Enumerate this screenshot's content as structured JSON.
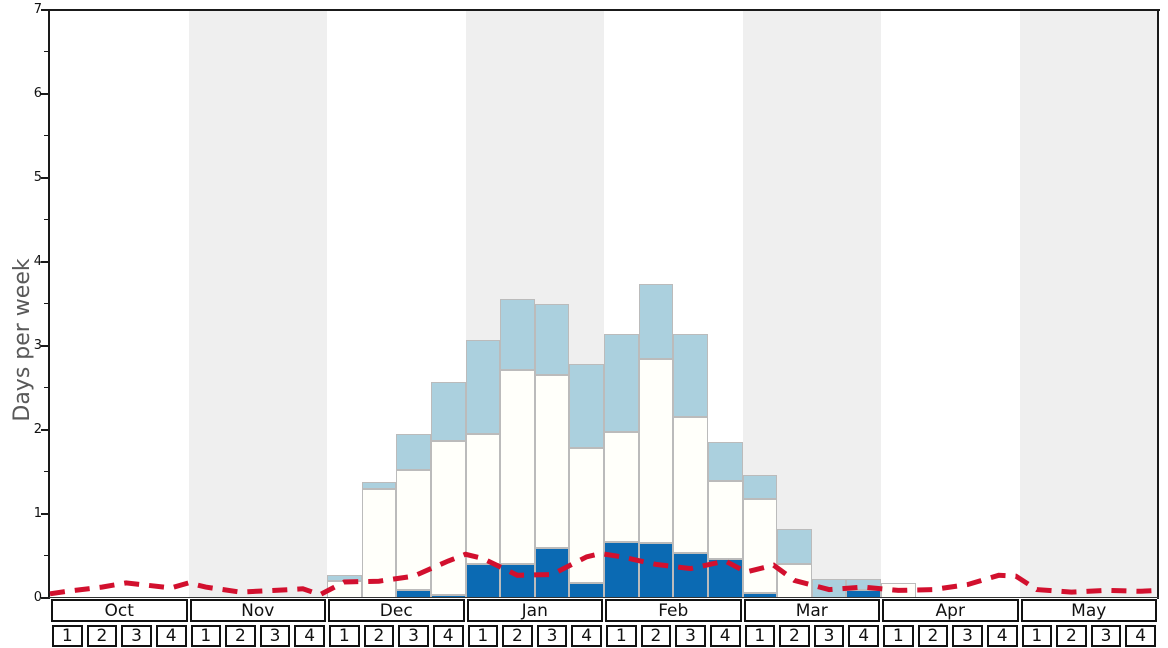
{
  "chart_data": {
    "type": "bar",
    "title": "",
    "ylabel": "Days per week",
    "xlabel": "",
    "ylim": [
      0,
      7
    ],
    "yticks": [
      0,
      1,
      2,
      3,
      4,
      5,
      6,
      7
    ],
    "y_minor_ticks": [
      0.5,
      1.5,
      2.5,
      3.5,
      4.5,
      5.5,
      6.5
    ],
    "grid": false,
    "legend": "none",
    "months": [
      "Oct",
      "Nov",
      "Dec",
      "Jan",
      "Feb",
      "Mar",
      "Apr",
      "May"
    ],
    "week_labels": [
      "1",
      "2",
      "3",
      "4"
    ],
    "weeks_per_month": 4,
    "shaded_month_indices": [
      1,
      3,
      5,
      7
    ],
    "series": [
      {
        "name": "dark-blue-segment",
        "color": "#0b6ab3",
        "values": [
          0,
          0,
          0,
          0,
          0,
          0,
          0,
          0,
          0,
          0,
          0.1,
          0.03,
          0.4,
          0.4,
          0.6,
          0.18,
          0.67,
          0.66,
          0.53,
          0.46,
          0.06,
          0,
          0,
          0.1,
          0,
          0,
          0,
          0,
          0,
          0,
          0,
          0
        ]
      },
      {
        "name": "white-segment",
        "color": "#fffffa",
        "values": [
          0,
          0,
          0,
          0,
          0,
          0,
          0,
          0,
          0.2,
          1.3,
          1.42,
          1.84,
          1.55,
          2.32,
          2.05,
          1.6,
          1.31,
          2.19,
          1.62,
          0.93,
          1.12,
          0.4,
          0,
          0,
          0.18,
          0,
          0,
          0,
          0,
          0,
          0,
          0
        ]
      },
      {
        "name": "light-blue-segment",
        "color": "#abd0de",
        "values": [
          0,
          0,
          0,
          0,
          0,
          0,
          0,
          0,
          0.07,
          0.08,
          0.43,
          0.7,
          1.12,
          0.84,
          0.85,
          1.0,
          1.16,
          0.89,
          0.99,
          0.47,
          0.28,
          0.42,
          0.23,
          0.13,
          0,
          0,
          0,
          0,
          0,
          0,
          0,
          0
        ]
      }
    ],
    "line": {
      "name": "average-line",
      "color": "#d2102e",
      "style": "dashed",
      "points": [
        [
          0,
          0.05
        ],
        [
          0.5,
          0.08
        ],
        [
          1.5,
          0.13
        ],
        [
          2.2,
          0.18
        ],
        [
          3.5,
          0.12
        ],
        [
          4.0,
          0.18
        ],
        [
          4.5,
          0.13
        ],
        [
          5.5,
          0.07
        ],
        [
          6.5,
          0.09
        ],
        [
          7.3,
          0.11
        ],
        [
          7.8,
          0.04
        ],
        [
          8.5,
          0.19
        ],
        [
          9.5,
          0.2
        ],
        [
          10.5,
          0.26
        ],
        [
          11.5,
          0.44
        ],
        [
          12.0,
          0.52
        ],
        [
          12.5,
          0.47
        ],
        [
          13.5,
          0.27
        ],
        [
          14.5,
          0.28
        ],
        [
          15.5,
          0.49
        ],
        [
          15.9,
          0.53
        ],
        [
          16.5,
          0.49
        ],
        [
          17.5,
          0.4
        ],
        [
          18.5,
          0.35
        ],
        [
          19.5,
          0.44
        ],
        [
          20.1,
          0.31
        ],
        [
          20.9,
          0.39
        ],
        [
          21.5,
          0.21
        ],
        [
          22.5,
          0.1
        ],
        [
          23.5,
          0.13
        ],
        [
          24.5,
          0.09
        ],
        [
          25.5,
          0.1
        ],
        [
          26.5,
          0.16
        ],
        [
          27.4,
          0.27
        ],
        [
          27.9,
          0.26
        ],
        [
          28.5,
          0.1
        ],
        [
          29.5,
          0.07
        ],
        [
          30.5,
          0.09
        ],
        [
          31.5,
          0.08
        ],
        [
          32,
          0.09
        ]
      ]
    }
  },
  "styles": {
    "band_color": "#efefef",
    "frame_color": "#1a1a1a",
    "bar_border_color": "#bbbbbb",
    "tick_label_color": "#111111",
    "ylabel_color": "#595959"
  }
}
